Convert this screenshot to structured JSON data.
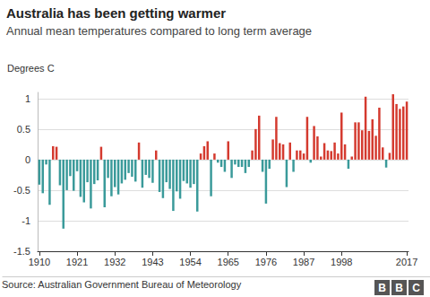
{
  "chart_data": {
    "type": "bar",
    "title": "Australia has been getting warmer",
    "subtitle": "Annual mean temperatures compared to long term average",
    "y_label": "Degrees C",
    "source": "Source: Australian Government Bureau of Meteorology",
    "logo": "BBC",
    "categories": [
      "1910",
      null,
      null,
      null,
      null,
      null,
      null,
      null,
      null,
      null,
      null,
      "1921",
      null,
      null,
      null,
      null,
      null,
      null,
      null,
      null,
      null,
      null,
      "1932",
      null,
      null,
      null,
      null,
      null,
      null,
      null,
      null,
      null,
      null,
      "1943",
      null,
      null,
      null,
      null,
      null,
      null,
      null,
      null,
      null,
      null,
      "1954",
      null,
      null,
      null,
      null,
      null,
      null,
      null,
      null,
      null,
      null,
      "1965",
      null,
      null,
      null,
      null,
      null,
      null,
      null,
      null,
      null,
      null,
      "1976",
      null,
      null,
      null,
      null,
      null,
      null,
      null,
      null,
      null,
      null,
      "1987",
      null,
      null,
      null,
      null,
      null,
      null,
      null,
      null,
      null,
      null,
      "1998",
      null,
      null,
      null,
      null,
      null,
      null,
      null,
      null,
      null,
      null,
      null,
      null,
      null,
      null,
      null,
      null,
      null,
      null,
      "2017"
    ],
    "values": [
      -0.41,
      -0.55,
      -0.08,
      -0.74,
      0.22,
      0.21,
      -0.42,
      -1.13,
      -0.5,
      -0.27,
      -0.51,
      -0.19,
      -0.61,
      -0.7,
      -0.37,
      -0.8,
      -0.4,
      -0.34,
      0.21,
      -0.78,
      -0.3,
      -0.6,
      -0.45,
      -0.57,
      -0.39,
      -0.33,
      -0.22,
      -0.28,
      -0.36,
      0.28,
      -0.46,
      -0.25,
      -0.3,
      -0.38,
      0.15,
      -0.53,
      -0.63,
      -0.37,
      -0.48,
      -0.84,
      -0.52,
      -0.64,
      -0.35,
      -0.39,
      -0.46,
      -0.4,
      -0.85,
      0.1,
      0.22,
      0.3,
      -0.6,
      0.1,
      -0.05,
      -0.12,
      -0.2,
      0.3,
      -0.3,
      -0.08,
      -0.12,
      -0.12,
      -0.22,
      -0.12,
      0.15,
      0.5,
      0.72,
      -0.2,
      -0.72,
      -0.15,
      0.33,
      0.7,
      0.27,
      0.25,
      -0.45,
      0.28,
      -0.2,
      0.15,
      0.15,
      0.1,
      0.7,
      -0.05,
      0.55,
      0.38,
      0.05,
      0.27,
      0.15,
      0.14,
      0.28,
      0.1,
      0.77,
      0.25,
      -0.15,
      0.05,
      0.61,
      0.61,
      0.48,
      1.03,
      0.47,
      0.66,
      0.39,
      0.85,
      0.2,
      -0.13,
      0.11,
      1.07,
      0.91,
      0.83,
      0.87,
      0.95
    ],
    "colors": [
      "#3a9a9a",
      "#3a9a9a",
      "#3a9a9a",
      "#3a9a9a",
      "#d43a2f",
      "#d43a2f",
      "#3a9a9a",
      "#3a9a9a",
      "#3a9a9a",
      "#3a9a9a",
      "#3a9a9a",
      "#3a9a9a",
      "#3a9a9a",
      "#3a9a9a",
      "#3a9a9a",
      "#3a9a9a",
      "#3a9a9a",
      "#3a9a9a",
      "#d43a2f",
      "#3a9a9a",
      "#3a9a9a",
      "#3a9a9a",
      "#3a9a9a",
      "#3a9a9a",
      "#3a9a9a",
      "#3a9a9a",
      "#3a9a9a",
      "#3a9a9a",
      "#3a9a9a",
      "#d43a2f",
      "#3a9a9a",
      "#3a9a9a",
      "#3a9a9a",
      "#3a9a9a",
      "#d43a2f",
      "#3a9a9a",
      "#3a9a9a",
      "#3a9a9a",
      "#3a9a9a",
      "#3a9a9a",
      "#3a9a9a",
      "#3a9a9a",
      "#3a9a9a",
      "#3a9a9a",
      "#3a9a9a",
      "#3a9a9a",
      "#3a9a9a",
      "#d43a2f",
      "#d43a2f",
      "#d43a2f",
      "#3a9a9a",
      "#d43a2f",
      "#3a9a9a",
      "#3a9a9a",
      "#3a9a9a",
      "#d43a2f",
      "#3a9a9a",
      "#3a9a9a",
      "#3a9a9a",
      "#3a9a9a",
      "#3a9a9a",
      "#3a9a9a",
      "#d43a2f",
      "#d43a2f",
      "#d43a2f",
      "#3a9a9a",
      "#3a9a9a",
      "#3a9a9a",
      "#d43a2f",
      "#d43a2f",
      "#d43a2f",
      "#d43a2f",
      "#3a9a9a",
      "#d43a2f",
      "#3a9a9a",
      "#d43a2f",
      "#d43a2f",
      "#d43a2f",
      "#d43a2f",
      "#3a9a9a",
      "#d43a2f",
      "#d43a2f",
      "#d43a2f",
      "#d43a2f",
      "#d43a2f",
      "#d43a2f",
      "#d43a2f",
      "#d43a2f",
      "#d43a2f",
      "#d43a2f",
      "#3a9a9a",
      "#d43a2f",
      "#d43a2f",
      "#d43a2f",
      "#d43a2f",
      "#d43a2f",
      "#d43a2f",
      "#d43a2f",
      "#d43a2f",
      "#d43a2f",
      "#d43a2f",
      "#3a9a9a",
      "#d43a2f",
      "#d43a2f",
      "#d43a2f",
      "#d43a2f",
      "#d43a2f",
      "#d43a2f"
    ],
    "ylim": [
      -1.5,
      1.1
    ],
    "yticks": [
      -1.5,
      -1,
      -0.5,
      0,
      0.5,
      1
    ],
    "grid": true
  }
}
